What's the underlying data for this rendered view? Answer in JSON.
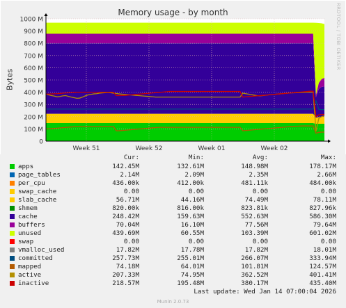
{
  "title": "Memory usage - by month",
  "side_label": "RRDTOOL / TOBI OETIKER",
  "footer": "Munin 2.0.73",
  "last_update": "Last update: Wed Jan 14 07:00:04 2026",
  "legend_headers": {
    "cur": "Cur:",
    "min": "Min:",
    "avg": "Avg:",
    "max": "Max:"
  },
  "legend": [
    {
      "name": "apps",
      "color": "#00cc00",
      "cur": "142.45M",
      "min": "132.61M",
      "avg": "148.98M",
      "max": "178.17M"
    },
    {
      "name": "page_tables",
      "color": "#0066b3",
      "cur": "2.14M",
      "min": "2.09M",
      "avg": "2.35M",
      "max": "2.66M"
    },
    {
      "name": "per_cpu",
      "color": "#ff8000",
      "cur": "436.00k",
      "min": "412.00k",
      "avg": "481.11k",
      "max": "484.00k"
    },
    {
      "name": "swap_cache",
      "color": "#ffcc00",
      "cur": "0.00",
      "min": "0.00",
      "avg": "0.00",
      "max": "0.00"
    },
    {
      "name": "slab_cache",
      "color": "#ffcc00",
      "cur": "56.71M",
      "min": "44.16M",
      "avg": "74.49M",
      "max": "78.11M"
    },
    {
      "name": "shmem",
      "color": "#008f00",
      "cur": "820.00k",
      "min": "816.00k",
      "avg": "823.81k",
      "max": "827.96k"
    },
    {
      "name": "cache",
      "color": "#330099",
      "cur": "248.42M",
      "min": "159.63M",
      "avg": "552.63M",
      "max": "586.30M"
    },
    {
      "name": "buffers",
      "color": "#990099",
      "cur": "70.04M",
      "min": "16.10M",
      "avg": "77.56M",
      "max": "79.64M"
    },
    {
      "name": "unused",
      "color": "#ccff00",
      "cur": "439.69M",
      "min": "60.55M",
      "avg": "103.39M",
      "max": "601.02M"
    },
    {
      "name": "swap",
      "color": "#ff0000",
      "cur": "0.00",
      "min": "0.00",
      "avg": "0.00",
      "max": "0.00"
    },
    {
      "name": "vmalloc_used",
      "color": "#808080",
      "cur": "17.82M",
      "min": "17.78M",
      "avg": "17.82M",
      "max": "18.01M"
    },
    {
      "name": "committed",
      "color": "#004d80",
      "cur": "257.73M",
      "min": "255.01M",
      "avg": "266.07M",
      "max": "333.94M"
    },
    {
      "name": "mapped",
      "color": "#b35a00",
      "cur": "74.18M",
      "min": "64.01M",
      "avg": "101.81M",
      "max": "124.57M"
    },
    {
      "name": "active",
      "color": "#b38f00",
      "cur": "207.33M",
      "min": "74.95M",
      "avg": "362.52M",
      "max": "401.41M"
    },
    {
      "name": "inactive",
      "color": "#cc0000",
      "cur": "218.57M",
      "min": "195.48M",
      "avg": "380.17M",
      "max": "435.40M"
    }
  ],
  "chart_data": {
    "type": "area",
    "title": "Memory usage - by month",
    "ylabel": "Bytes",
    "ylim": [
      0,
      1000
    ],
    "y_unit": "M",
    "yticks": [
      "0",
      "100 M",
      "200 M",
      "300 M",
      "400 M",
      "500 M",
      "600 M",
      "700 M",
      "800 M",
      "900 M",
      "1000 M"
    ],
    "ytick_values": [
      0,
      100,
      200,
      300,
      400,
      500,
      600,
      700,
      800,
      900,
      1000
    ],
    "xticks": [
      "Week 51",
      "Week 52",
      "Week 01",
      "Week 02"
    ],
    "xtick_positions": [
      0.145,
      0.37,
      0.595,
      0.82
    ],
    "x_count": 100,
    "stacked_series": [
      {
        "name": "apps",
        "color": "#00cc00",
        "values": [
          148,
          148,
          148,
          148,
          148,
          148,
          148,
          148,
          148,
          148,
          148,
          148,
          148,
          148,
          148,
          148,
          148,
          148,
          148,
          148,
          148,
          148,
          148,
          148,
          148,
          148,
          148,
          148,
          148,
          148,
          148,
          148,
          148,
          148,
          148,
          148,
          148,
          148,
          148,
          148,
          148,
          148,
          148,
          148,
          148,
          148,
          148,
          148,
          148,
          148,
          148,
          148,
          148,
          148,
          148,
          148,
          148,
          148,
          148,
          148,
          148,
          148,
          148,
          148,
          148,
          148,
          148,
          148,
          148,
          148,
          148,
          148,
          148,
          148,
          148,
          148,
          148,
          148,
          148,
          148,
          148,
          148,
          148,
          148,
          148,
          148,
          148,
          148,
          148,
          148,
          148,
          148,
          148,
          148,
          148,
          148,
          142,
          142,
          142,
          142
        ]
      },
      {
        "name": "slab_cache",
        "color": "#ffcc00",
        "values": [
          76,
          76,
          76,
          76,
          76,
          76,
          76,
          76,
          76,
          76,
          76,
          76,
          76,
          76,
          76,
          76,
          76,
          76,
          76,
          76,
          76,
          76,
          76,
          76,
          76,
          76,
          76,
          76,
          76,
          76,
          76,
          76,
          76,
          76,
          76,
          76,
          76,
          76,
          76,
          76,
          76,
          76,
          76,
          76,
          76,
          76,
          76,
          76,
          76,
          76,
          76,
          76,
          76,
          76,
          76,
          76,
          76,
          76,
          76,
          76,
          76,
          76,
          76,
          76,
          76,
          76,
          76,
          76,
          76,
          76,
          76,
          76,
          76,
          76,
          76,
          76,
          76,
          76,
          76,
          76,
          76,
          76,
          76,
          76,
          76,
          76,
          76,
          76,
          76,
          76,
          76,
          76,
          76,
          76,
          76,
          76,
          50,
          54,
          56,
          57
        ]
      },
      {
        "name": "cache",
        "color": "#330099",
        "values": [
          576,
          576,
          576,
          576,
          576,
          576,
          576,
          576,
          576,
          576,
          576,
          576,
          576,
          576,
          576,
          576,
          576,
          576,
          576,
          576,
          576,
          576,
          576,
          576,
          576,
          576,
          576,
          576,
          576,
          576,
          576,
          576,
          576,
          576,
          576,
          576,
          576,
          576,
          576,
          576,
          576,
          576,
          576,
          576,
          576,
          576,
          576,
          576,
          576,
          576,
          576,
          576,
          576,
          576,
          576,
          576,
          576,
          576,
          576,
          576,
          576,
          576,
          576,
          576,
          576,
          576,
          576,
          576,
          576,
          576,
          576,
          576,
          576,
          576,
          576,
          576,
          576,
          576,
          576,
          576,
          576,
          576,
          576,
          576,
          576,
          576,
          576,
          576,
          576,
          576,
          576,
          576,
          576,
          576,
          576,
          576,
          165,
          230,
          245,
          248
        ]
      },
      {
        "name": "buffers",
        "color": "#990099",
        "values": [
          78,
          78,
          78,
          78,
          78,
          78,
          78,
          78,
          78,
          78,
          78,
          78,
          78,
          78,
          78,
          78,
          78,
          78,
          78,
          78,
          78,
          78,
          78,
          78,
          78,
          78,
          78,
          78,
          78,
          78,
          78,
          78,
          78,
          78,
          78,
          78,
          78,
          78,
          78,
          78,
          78,
          78,
          78,
          78,
          78,
          78,
          78,
          78,
          78,
          78,
          78,
          78,
          78,
          78,
          78,
          78,
          78,
          78,
          78,
          78,
          78,
          78,
          78,
          78,
          78,
          78,
          78,
          78,
          78,
          78,
          78,
          78,
          78,
          78,
          78,
          78,
          78,
          78,
          78,
          78,
          78,
          78,
          78,
          78,
          78,
          78,
          78,
          78,
          78,
          78,
          78,
          78,
          78,
          78,
          78,
          78,
          20,
          50,
          65,
          70
        ]
      },
      {
        "name": "unused",
        "color": "#ccff00",
        "values": [
          90,
          90,
          90,
          90,
          90,
          90,
          90,
          90,
          90,
          90,
          90,
          90,
          90,
          90,
          90,
          90,
          90,
          90,
          90,
          90,
          90,
          90,
          90,
          90,
          90,
          90,
          90,
          90,
          90,
          90,
          90,
          90,
          90,
          90,
          90,
          90,
          90,
          90,
          90,
          90,
          90,
          90,
          90,
          90,
          90,
          90,
          90,
          90,
          90,
          90,
          90,
          90,
          90,
          90,
          90,
          90,
          90,
          90,
          90,
          90,
          90,
          90,
          90,
          90,
          90,
          90,
          90,
          90,
          90,
          90,
          90,
          90,
          90,
          90,
          90,
          90,
          90,
          90,
          90,
          90,
          90,
          90,
          90,
          90,
          90,
          90,
          90,
          90,
          90,
          90,
          90,
          90,
          90,
          90,
          90,
          90,
          590,
          490,
          455,
          440
        ]
      }
    ],
    "line_series": [
      {
        "name": "committed",
        "color": "#004d80",
        "values": [
          262,
          262,
          262,
          262,
          262,
          262,
          262,
          262,
          262,
          262,
          262,
          262,
          262,
          262,
          262,
          262,
          262,
          262,
          262,
          262,
          262,
          262,
          262,
          262,
          262,
          262,
          262,
          262,
          262,
          262,
          262,
          262,
          262,
          262,
          262,
          262,
          262,
          262,
          262,
          262,
          262,
          262,
          262,
          262,
          262,
          262,
          262,
          262,
          262,
          262,
          262,
          262,
          262,
          262,
          262,
          262,
          262,
          262,
          262,
          262,
          262,
          262,
          262,
          262,
          262,
          262,
          262,
          262,
          262,
          262,
          262,
          262,
          262,
          262,
          262,
          262,
          262,
          262,
          262,
          262,
          262,
          262,
          262,
          262,
          262,
          262,
          262,
          262,
          262,
          262,
          262,
          262,
          262,
          262,
          262,
          262,
          330,
          260,
          258,
          258
        ]
      },
      {
        "name": "mapped",
        "color": "#b35a00",
        "values": [
          100,
          100,
          102,
          104,
          106,
          108,
          110,
          112,
          114,
          116,
          118,
          120,
          120,
          120,
          120,
          120,
          120,
          120,
          120,
          120,
          120,
          120,
          120,
          120,
          120,
          85,
          85,
          87,
          89,
          91,
          93,
          95,
          97,
          99,
          101,
          103,
          105,
          107,
          109,
          111,
          113,
          113,
          113,
          113,
          113,
          113,
          113,
          113,
          113,
          113,
          113,
          113,
          113,
          113,
          113,
          113,
          113,
          113,
          113,
          113,
          113,
          113,
          113,
          113,
          113,
          113,
          113,
          113,
          113,
          113,
          85,
          87,
          89,
          91,
          93,
          95,
          97,
          99,
          101,
          103,
          105,
          107,
          109,
          111,
          113,
          115,
          117,
          119,
          121,
          122,
          123,
          124,
          124,
          124,
          124,
          124,
          65,
          72,
          74,
          74
        ]
      },
      {
        "name": "active",
        "color": "#b38f00",
        "values": [
          385,
          378,
          372,
          368,
          362,
          365,
          370,
          372,
          366,
          360,
          355,
          350,
          352,
          360,
          370,
          378,
          382,
          386,
          388,
          392,
          394,
          396,
          398,
          396,
          392,
          390,
          386,
          384,
          382,
          380,
          378,
          376,
          374,
          372,
          370,
          368,
          366,
          364,
          362,
          360,
          360,
          360,
          360,
          360,
          360,
          360,
          360,
          360,
          360,
          360,
          360,
          360,
          360,
          360,
          360,
          360,
          360,
          360,
          360,
          360,
          360,
          360,
          360,
          360,
          360,
          360,
          360,
          360,
          360,
          360,
          392,
          388,
          384,
          380,
          376,
          372,
          370,
          372,
          375,
          378,
          380,
          382,
          384,
          386,
          388,
          390,
          392,
          394,
          395,
          396,
          397,
          398,
          399,
          400,
          400,
          400,
          80,
          185,
          200,
          207
        ]
      },
      {
        "name": "inactive",
        "color": "#cc0000",
        "values": [
          385,
          385,
          386,
          387,
          388,
          390,
          392,
          394,
          395,
          396,
          398,
          400,
          400,
          400,
          400,
          400,
          400,
          400,
          400,
          400,
          400,
          400,
          400,
          400,
          400,
          372,
          372,
          373,
          374,
          376,
          378,
          380,
          382,
          384,
          386,
          388,
          390,
          392,
          394,
          396,
          398,
          400,
          402,
          404,
          406,
          406,
          406,
          406,
          406,
          406,
          406,
          406,
          406,
          406,
          406,
          406,
          406,
          406,
          406,
          406,
          406,
          406,
          406,
          406,
          406,
          406,
          406,
          406,
          406,
          406,
          360,
          362,
          364,
          366,
          368,
          370,
          372,
          374,
          376,
          378,
          380,
          382,
          384,
          386,
          388,
          390,
          392,
          394,
          396,
          398,
          400,
          402,
          404,
          406,
          408,
          408,
          200,
          215,
          218,
          218
        ]
      }
    ]
  }
}
